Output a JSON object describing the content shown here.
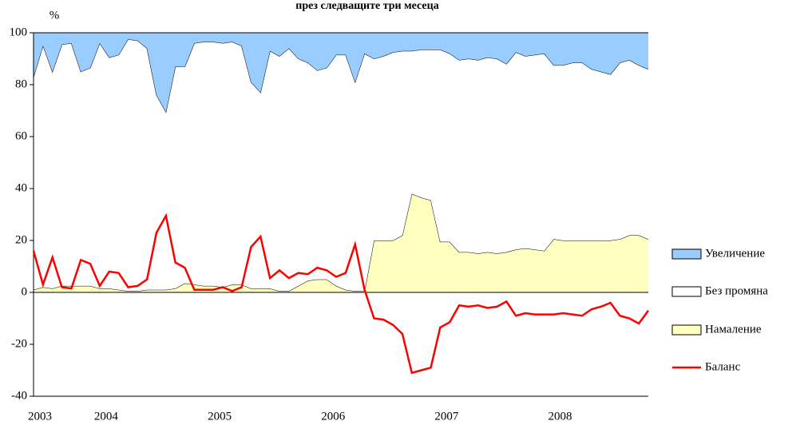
{
  "chart_data": {
    "type": "stacked_area_line",
    "title": "през следващите три месеца",
    "y_label": "%",
    "categories": [
      "2003",
      null,
      null,
      null,
      null,
      null,
      null,
      "2004",
      null,
      null,
      null,
      null,
      null,
      null,
      null,
      null,
      null,
      null,
      null,
      "2005",
      null,
      null,
      null,
      null,
      null,
      null,
      null,
      null,
      null,
      null,
      null,
      "2006",
      null,
      null,
      null,
      null,
      null,
      null,
      null,
      null,
      null,
      null,
      null,
      "2007",
      null,
      null,
      null,
      null,
      null,
      null,
      null,
      null,
      null,
      null,
      null,
      "2008",
      null,
      null,
      null,
      null,
      null,
      null,
      null,
      null,
      null,
      null
    ],
    "series": [
      {
        "name": "Увеличение",
        "color": "#99ccff",
        "kind": "area",
        "values": [
          17,
          5,
          15,
          4.5,
          4,
          15,
          13.5,
          4,
          9.5,
          8.5,
          2.5,
          3,
          6,
          24,
          30.5,
          13,
          13,
          4,
          3.5,
          3.5,
          4,
          3.5,
          5,
          19,
          23,
          7,
          9,
          6,
          10,
          11.5,
          14.5,
          13.5,
          8.5,
          8.5,
          19,
          8,
          10,
          9,
          7.5,
          7,
          7,
          6.5,
          6.5,
          6.5,
          8,
          10.5,
          10,
          10.5,
          9.5,
          10,
          12,
          7.5,
          9,
          8.5,
          8,
          12.5,
          12.5,
          11.5,
          11.5,
          14,
          15,
          16,
          11.5,
          10.5,
          12.5,
          14
        ]
      },
      {
        "name": "Без промяна",
        "color": "#ffffff",
        "kind": "area",
        "values": [
          82,
          93,
          83.5,
          93,
          93.5,
          82.5,
          84,
          94.5,
          89,
          90.5,
          97,
          96.5,
          93,
          75,
          68.5,
          85.5,
          83.5,
          93,
          94,
          94,
          94,
          93.5,
          92,
          79.5,
          75.5,
          91.5,
          90.5,
          93.5,
          87.5,
          84,
          80.5,
          81.5,
          89,
          90.5,
          80.5,
          91.5,
          70,
          71,
          72.5,
          71,
          55,
          57,
          58,
          74,
          72.5,
          74,
          74.5,
          74.5,
          75,
          75,
          72.5,
          76,
          74,
          75,
          76,
          67,
          67.5,
          68.5,
          68.5,
          66,
          65,
          64,
          68,
          67.5,
          65.5,
          65.5
        ]
      },
      {
        "name": "Намаление",
        "color": "#ffffc0",
        "kind": "area",
        "values": [
          1,
          2,
          1.5,
          2.5,
          2.5,
          2.5,
          2.5,
          1.5,
          1.5,
          1,
          0.5,
          0.5,
          1,
          1,
          1,
          1.5,
          3.5,
          3,
          2.5,
          2.5,
          2,
          3,
          3,
          1.5,
          1.5,
          1.5,
          0.5,
          0.5,
          2.5,
          4.5,
          5,
          5,
          2.5,
          1,
          0.5,
          0.5,
          20,
          20,
          20,
          22,
          38,
          36.5,
          35.5,
          19.5,
          19.5,
          15.5,
          15.5,
          15,
          15.5,
          15,
          15.5,
          16.5,
          17,
          16.5,
          16,
          20.5,
          20,
          20,
          20,
          20,
          20,
          20,
          20.5,
          22,
          22,
          20.5
        ]
      },
      {
        "name": "Баланс",
        "color": "#ff0000",
        "kind": "line",
        "values": [
          16,
          3,
          13.5,
          2,
          1.5,
          12.5,
          11,
          2.5,
          8,
          7.5,
          2,
          2.5,
          5,
          23,
          29.5,
          11.5,
          9.5,
          1,
          1,
          1,
          2,
          0.5,
          2,
          17.5,
          21.5,
          5.5,
          8.5,
          5.5,
          7.5,
          7,
          9.5,
          8.5,
          6,
          7.5,
          18.5,
          1,
          -10,
          -10.5,
          -12.5,
          -16,
          -31,
          -30,
          -29,
          -13.5,
          -11.5,
          -5,
          -5.5,
          -5,
          -6,
          -5.5,
          -3.5,
          -9,
          -8,
          -8.5,
          -8.5,
          -8.5,
          -8,
          -8.5,
          -9,
          -6.5,
          -5.5,
          -4,
          -9,
          -10,
          -12,
          -7
        ]
      }
    ],
    "stack_order": [
      2,
      1,
      0
    ],
    "ylim": [
      -40,
      100
    ],
    "yticks": [
      -40,
      -20,
      0,
      20,
      40,
      60,
      80,
      100
    ],
    "grid": false,
    "legend": "right"
  }
}
